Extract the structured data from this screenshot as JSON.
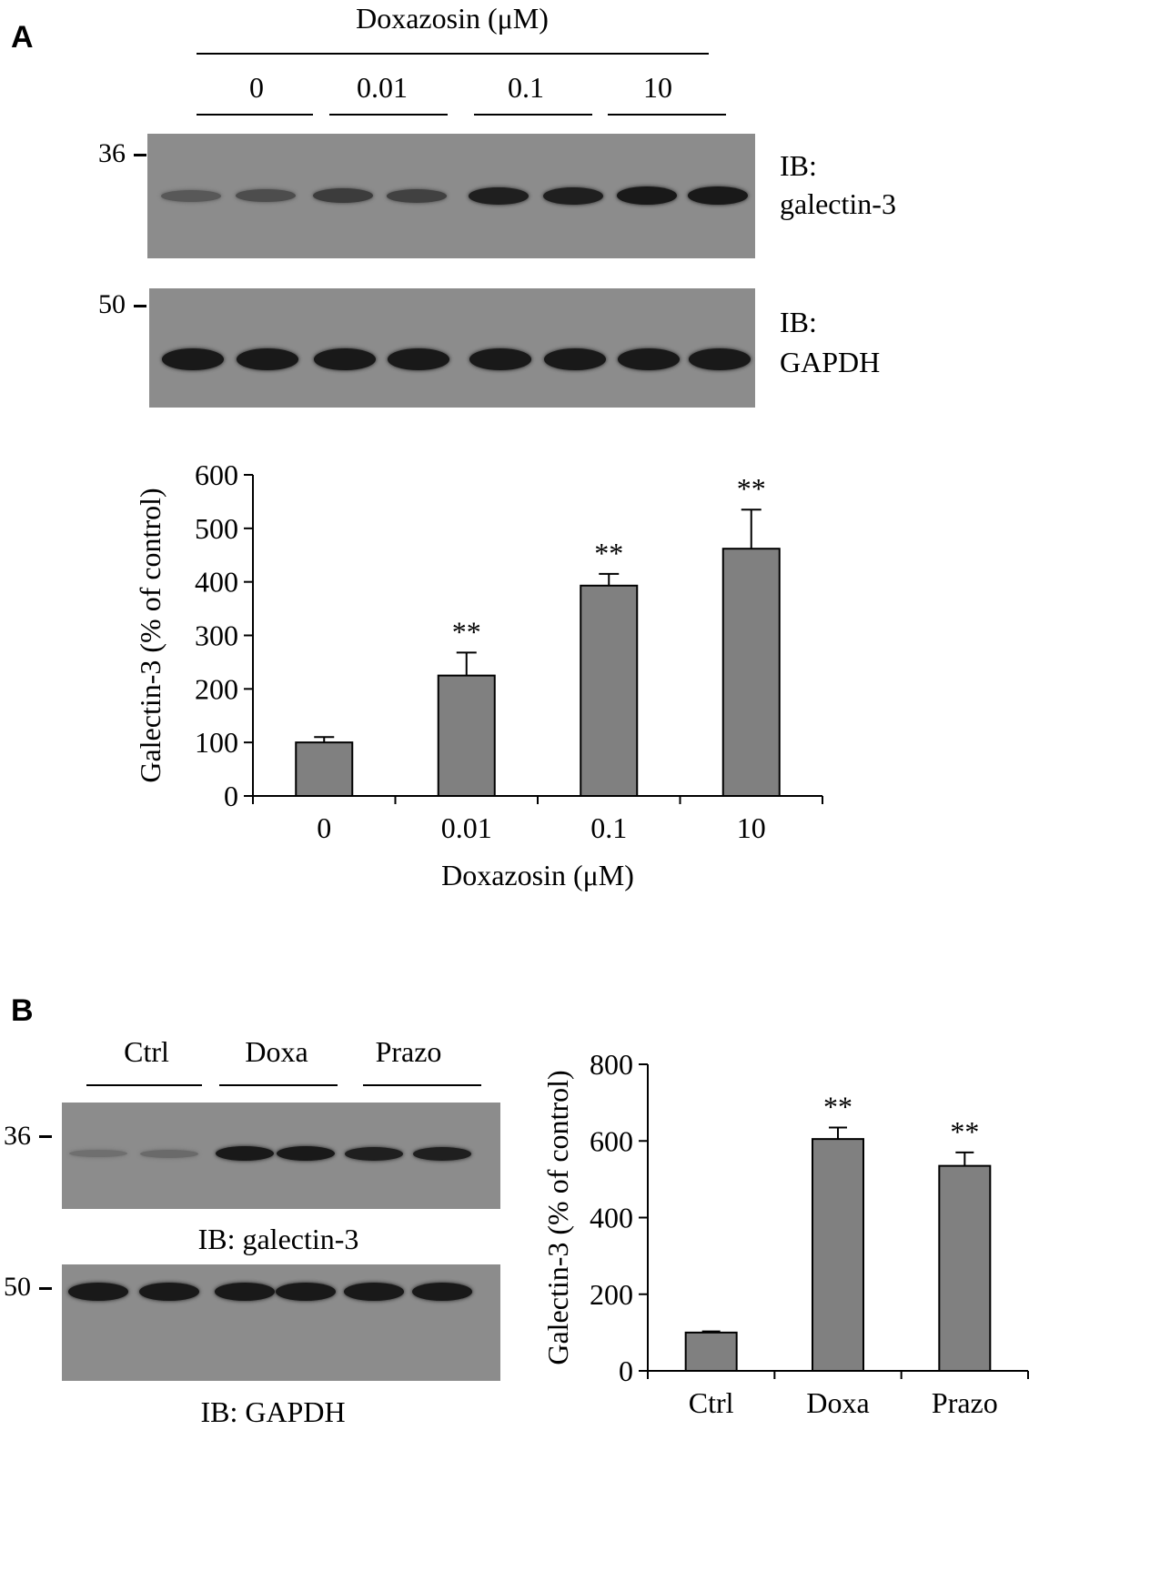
{
  "panel_a": {
    "letter": "A",
    "treatment_label": "Doxazosin (μM)",
    "lane_groups": [
      "0",
      "0.01",
      "0.1",
      "10"
    ],
    "blot1": {
      "marker": "36",
      "ib_line1": "IB:",
      "ib_line2": "galectin-3"
    },
    "blot2": {
      "marker": "50",
      "ib_line1": "IB:",
      "ib_line2": "GAPDH"
    },
    "galectin3_band_intensity": [
      0.45,
      0.55,
      0.7,
      0.65,
      0.95,
      0.95,
      1.0,
      1.0
    ],
    "gapdh_band_intensity": [
      1,
      1,
      1,
      1,
      1,
      1,
      1,
      1
    ]
  },
  "panel_b": {
    "letter": "B",
    "lane_groups": [
      "Ctrl",
      "Doxa",
      "Prazo"
    ],
    "blot1": {
      "marker": "36",
      "ib_label": "IB: galectin-3"
    },
    "blot2": {
      "marker": "50",
      "ib_label": "IB: GAPDH"
    },
    "galectin3_band_intensity": [
      0.25,
      0.3,
      1.0,
      1.0,
      0.95,
      0.95
    ],
    "gapdh_band_intensity": [
      1,
      1,
      1,
      1,
      1,
      1
    ]
  },
  "colors": {
    "bar_fill": "#808080",
    "blot_bg": "#8c8c8c",
    "band": "#1f1f1f"
  },
  "chart_data": [
    {
      "type": "bar",
      "categories": [
        "0",
        "0.01",
        "0.1",
        "10"
      ],
      "values": [
        100,
        225,
        393,
        462
      ],
      "errors": [
        10,
        43,
        22,
        73
      ],
      "significance": [
        "",
        "**",
        "**",
        "**"
      ],
      "xlabel": "Doxazosin (μM)",
      "ylabel": "Galectin-3 (% of control)",
      "ylim": [
        0,
        600
      ],
      "yticks": [
        0,
        100,
        200,
        300,
        400,
        500,
        600
      ],
      "grid": false
    },
    {
      "type": "bar",
      "categories": [
        "Ctrl",
        "Doxa",
        "Prazo"
      ],
      "values": [
        100,
        605,
        535
      ],
      "errors": [
        3,
        30,
        35
      ],
      "significance": [
        "",
        "**",
        "**"
      ],
      "xlabel": "",
      "ylabel": "Galectin-3 (% of control)",
      "ylim": [
        0,
        800
      ],
      "yticks": [
        0,
        200,
        400,
        600,
        800
      ],
      "grid": false
    }
  ]
}
